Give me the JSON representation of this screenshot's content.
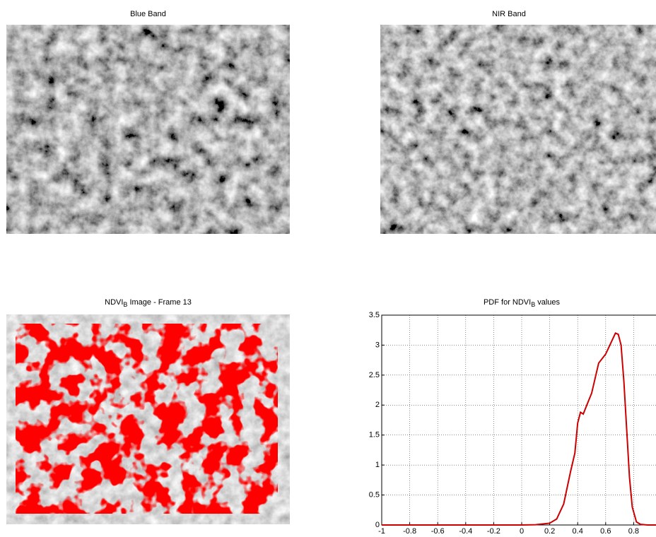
{
  "chart_data": [
    {
      "type": "image",
      "title": "Blue Band"
    },
    {
      "type": "image",
      "title": "NIR Band"
    },
    {
      "type": "image",
      "title": [
        "NDVI",
        "B",
        "Image - Frame 13"
      ]
    },
    {
      "type": "line",
      "title": [
        "PDF for NDVI",
        "B",
        "values"
      ],
      "x": [
        -1,
        0,
        0.1,
        0.2,
        0.25,
        0.3,
        0.35,
        0.38,
        0.4,
        0.42,
        0.44,
        0.46,
        0.5,
        0.55,
        0.6,
        0.63,
        0.65,
        0.67,
        0.69,
        0.71,
        0.73,
        0.75,
        0.77,
        0.79,
        0.82,
        0.85,
        0.9,
        1
      ],
      "series": [
        {
          "color": "#cc0000",
          "values": [
            0,
            0,
            0.005,
            0.03,
            0.1,
            0.35,
            0.9,
            1.2,
            1.7,
            1.88,
            1.85,
            1.97,
            2.2,
            2.7,
            2.85,
            3.0,
            3.1,
            3.2,
            3.18,
            3.0,
            2.4,
            1.6,
            0.8,
            0.3,
            0.05,
            0.01,
            0,
            0
          ]
        }
      ],
      "xlim": [
        -1,
        1
      ],
      "ylim": [
        0,
        3.5
      ],
      "xticks": [
        -1,
        -0.8,
        -0.6,
        -0.4,
        -0.2,
        0,
        0.2,
        0.4,
        0.6,
        0.8
      ],
      "yticks": [
        0,
        0.5,
        1,
        1.5,
        2,
        2.5,
        3,
        3.5
      ],
      "grid": true
    }
  ]
}
